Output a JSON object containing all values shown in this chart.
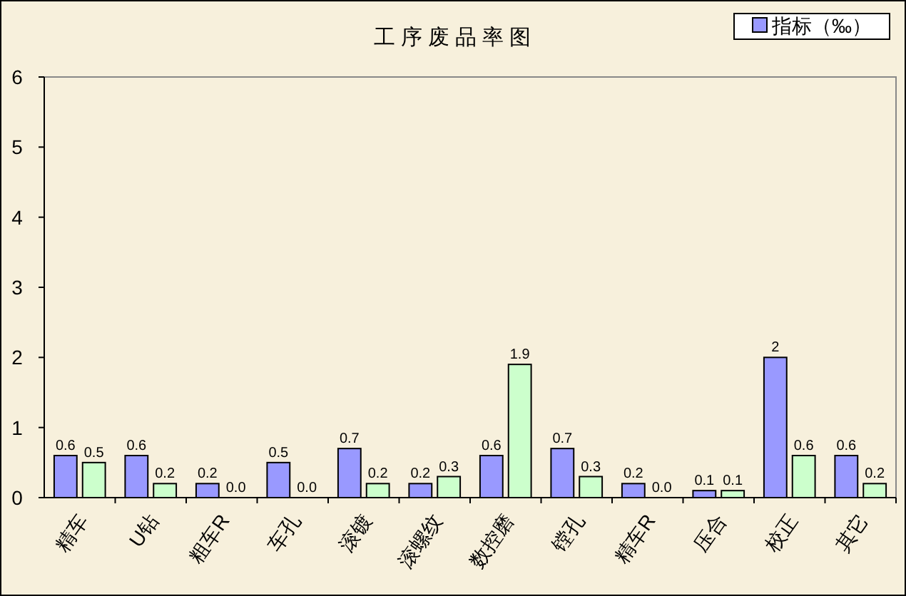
{
  "chart_data": {
    "type": "bar",
    "title": "工序废品率图",
    "categories": [
      "精车",
      "U钻",
      "粗车R",
      "车孔",
      "滚镀",
      "滚螺纹",
      "数控磨",
      "镗孔",
      "精车R",
      "压合",
      "校正",
      "其它"
    ],
    "series": [
      {
        "name": "指标（‰）",
        "color": "#9999ff",
        "values": [
          0.6,
          0.6,
          0.2,
          0.5,
          0.7,
          0.2,
          0.6,
          0.7,
          0.2,
          0.1,
          2,
          0.6
        ],
        "value_labels": [
          "0.6",
          "0.6",
          "0.2",
          "0.5",
          "0.7",
          "0.2",
          "0.6",
          "0.7",
          "0.2",
          "0.1",
          "2",
          "0.6"
        ]
      },
      {
        "color": "#ccffcc",
        "values": [
          0.5,
          0.2,
          0.0,
          0.0,
          0.2,
          0.3,
          1.9,
          0.3,
          0.0,
          0.1,
          0.6,
          0.2
        ],
        "value_labels": [
          "0.5",
          "0.2",
          "0.0",
          "0.0",
          "0.2",
          "0.3",
          "1.9",
          "0.3",
          "0.0",
          "0.1",
          "0.6",
          "0.2"
        ]
      }
    ],
    "ylim": [
      0,
      6
    ],
    "yticks": [
      0,
      1,
      2,
      3,
      4,
      5,
      6
    ],
    "legend": "top right"
  }
}
